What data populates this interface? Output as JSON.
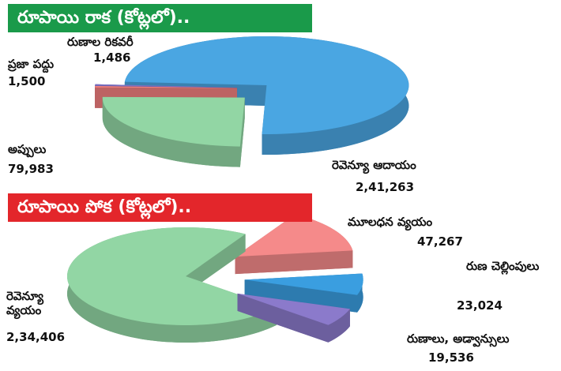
{
  "chart_data": [
    {
      "type": "pie",
      "title": "రూపాయి రాక (కోట్లలో)..",
      "title_color": "#1a9a4a",
      "categories": [
        "రెవెన్యూ ఆదాయం",
        "అప్పులు",
        "ప్రజా పద్దు",
        "రుణాల రికవరీ"
      ],
      "values": [
        241263,
        79983,
        1500,
        1486
      ],
      "value_labels": [
        "2,41,263",
        "79,983",
        "1,500",
        "1,486"
      ],
      "colors": [
        "#4aa6e2",
        "#92d6a4",
        "#f27f7f",
        "#7d72c4"
      ]
    },
    {
      "type": "pie",
      "title": "రూపాయి పోక (కోట్లలో)..",
      "title_color": "#e3262b",
      "categories": [
        "రెవెన్యూ వ్యయం",
        "మూలధన వ్యయం",
        "రుణ చెల్లింపులు",
        "రుణాలు, అడ్వాన్సులు"
      ],
      "values": [
        234406,
        47267,
        23024,
        19536
      ],
      "value_labels": [
        "2,34,406",
        "47,267",
        "23,024",
        "19,536"
      ],
      "colors": [
        "#92d6a4",
        "#f58a8a",
        "#3a9ee0",
        "#8b7acb"
      ]
    }
  ]
}
